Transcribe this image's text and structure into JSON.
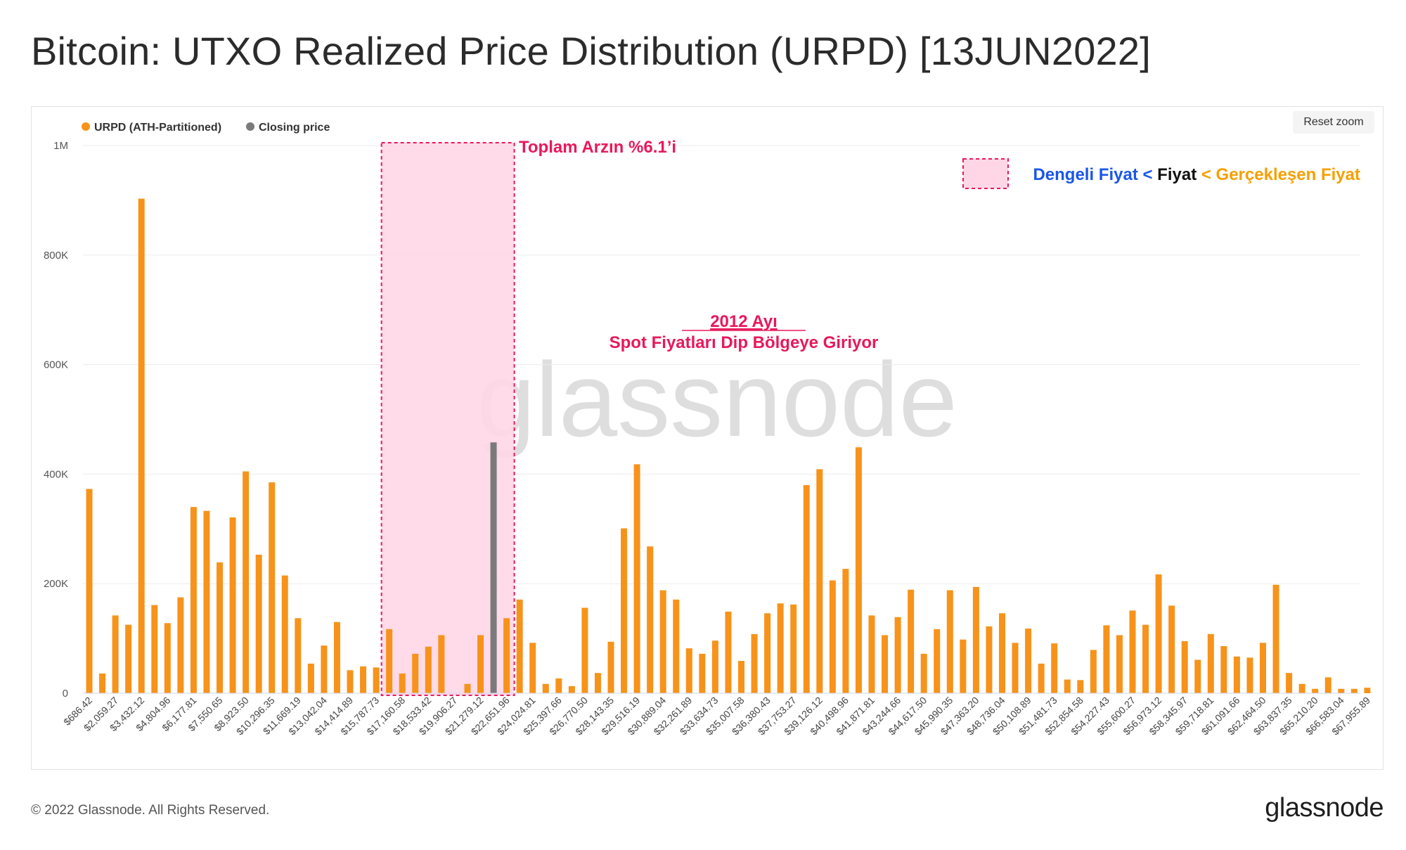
{
  "title": "Bitcoin: UTXO Realized Price Distribution (URPD) [13JUN2022]",
  "footer": {
    "copyright": "© 2022 Glassnode. All Rights Reserved.",
    "logo": "glassnode"
  },
  "watermark": "glassnode",
  "reset_zoom_label": "Reset zoom",
  "legend": [
    {
      "label": "URPD (ATH-Partitioned)",
      "color": "#f7931a"
    },
    {
      "label": "Closing price",
      "color": "#7a7a7a"
    }
  ],
  "annotations": {
    "supply_label": "Toplam Arzın %6.1’i",
    "note_line1": "2012 Ayı",
    "note_line2": "Spot Fiyatları Dip Bölgeye Giriyor",
    "key_part1": "Dengeli Fiyat",
    "key_part2": " < ",
    "key_part3": "Fiyat",
    "key_part4": " < Gerçekleşen Fiyat"
  },
  "colors": {
    "bar": "#f7931a",
    "closing_bar": "#7a7a7a",
    "highlight_fill": "#ffd6e6",
    "highlight_border": "#e8185c",
    "annotation": "#e8185c",
    "key_blue": "#1a56e8",
    "key_black": "#111111",
    "key_orange": "#f5a000"
  },
  "chart_data": {
    "type": "bar",
    "y_ticks": [
      "0",
      "200K",
      "400K",
      "600K",
      "800K",
      "1M"
    ],
    "ylim": [
      0,
      1000000
    ],
    "grid": true,
    "legend_position": "top-left",
    "x_tick_labels": [
      "$686.42",
      "$2,059.27",
      "$3,432.12",
      "$4,804.96",
      "$6,177.81",
      "$7,550.65",
      "$8,923.50",
      "$10,296.35",
      "$11,669.19",
      "$13,042.04",
      "$14,414.89",
      "$15,787.73",
      "$17,160.58",
      "$18,533.42",
      "$19,906.27",
      "$21,279.12",
      "$22,651.96",
      "$24,024.81",
      "$25,397.66",
      "$26,770.50",
      "$28,143.35",
      "$29,516.19",
      "$30,889.04",
      "$32,261.89",
      "$33,634.73",
      "$35,007.58",
      "$36,380.43",
      "$37,753.27",
      "$39,126.12",
      "$40,498.96",
      "$41,871.81",
      "$43,244.66",
      "$44,617.50",
      "$45,990.35",
      "$47,363.20",
      "$48,736.04",
      "$50,108.89",
      "$51,481.73",
      "$52,854.58",
      "$54,227.43",
      "$55,600.27",
      "$56,973.12",
      "$58,345.97",
      "$59,718.81",
      "$61,091.66",
      "$62,464.50",
      "$63,837.35",
      "$65,210.20",
      "$66,583.04",
      "$67,955.89"
    ],
    "values": [
      373000,
      36000,
      142000,
      125000,
      903000,
      161000,
      128000,
      175000,
      340000,
      333000,
      239000,
      321000,
      405000,
      253000,
      385000,
      215000,
      137000,
      54000,
      87000,
      130000,
      42000,
      49000,
      47000,
      117000,
      36000,
      72000,
      85000,
      106000,
      0,
      17000,
      106000,
      458000,
      137000,
      171000,
      92000,
      17000,
      27000,
      13000,
      156000,
      37000,
      94000,
      301000,
      418000,
      268000,
      188000,
      171000,
      82000,
      72000,
      96000,
      149000,
      59000,
      108000,
      146000,
      164000,
      162000,
      380000,
      409000,
      206000,
      227000,
      449000,
      142000,
      106000,
      139000,
      189000,
      72000,
      117000,
      188000,
      98000,
      194000,
      122000,
      146000,
      92000,
      118000,
      54000,
      91000,
      25000,
      24000,
      79000,
      124000,
      106000,
      151000,
      125000,
      217000,
      160000,
      95000,
      61000,
      108000,
      86000,
      67000,
      65000,
      92000,
      198000,
      37000,
      17000,
      8000,
      29000,
      8000,
      8000,
      10000
    ],
    "closing_price_index": 31,
    "highlight_range_index": [
      23,
      32
    ]
  }
}
